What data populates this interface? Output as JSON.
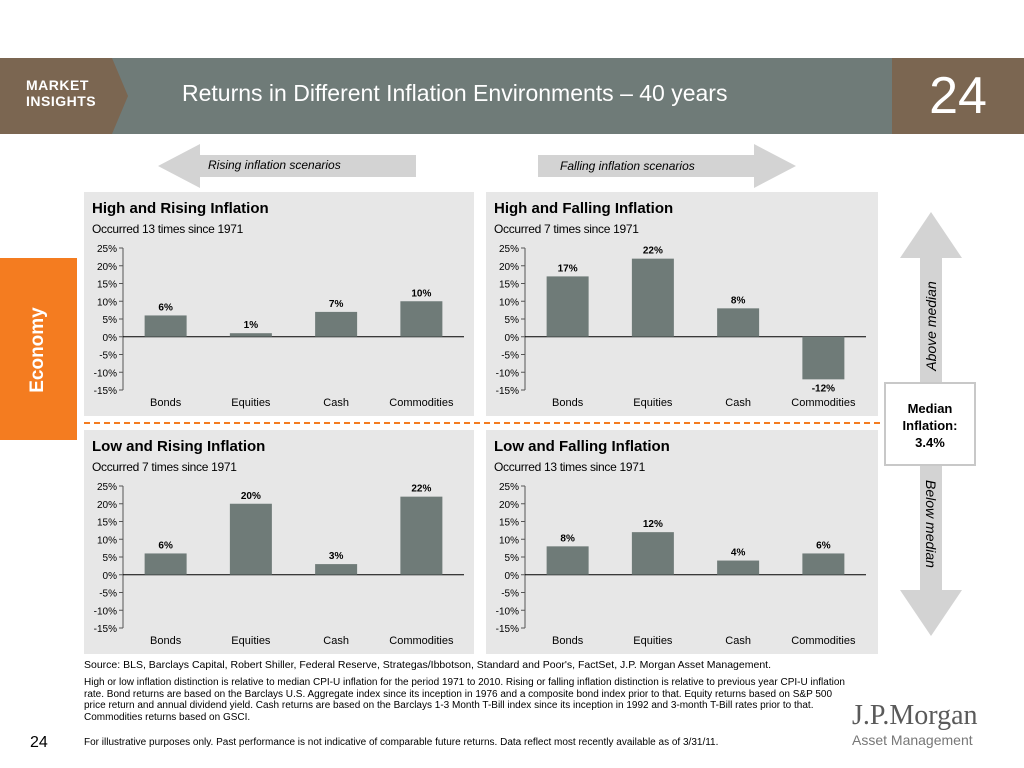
{
  "header": {
    "brand": "MARKET\nINSIGHTS",
    "title": "Returns in Different Inflation Environments – 40 years",
    "page_badge": "24",
    "band_color": "#6f7b78",
    "badge_color": "#7b6651"
  },
  "side_tab": {
    "label": "Economy",
    "color": "#f47c20"
  },
  "arrows": {
    "rising": "Rising inflation scenarios",
    "falling": "Falling inflation scenarios"
  },
  "median": {
    "label": "Median Inflation:",
    "value": "3.4%",
    "above": "Above median",
    "below": "Below median"
  },
  "chart_data": [
    {
      "type": "bar",
      "title": "High and Rising Inflation",
      "subtitle": "Occurred 13 times since 1971",
      "categories": [
        "Bonds",
        "Equities",
        "Cash",
        "Commodities"
      ],
      "values": [
        6,
        1,
        7,
        10
      ],
      "data_labels": [
        "6%",
        "1%",
        "7%",
        "10%"
      ],
      "ylim": [
        -15,
        25
      ],
      "yticks": [
        "25%",
        "20%",
        "15%",
        "10%",
        "5%",
        "0%",
        "-5%",
        "-10%",
        "-15%"
      ],
      "bar_color": "#6f7b78"
    },
    {
      "type": "bar",
      "title": "High and Falling Inflation",
      "subtitle": "Occurred 7 times since 1971",
      "categories": [
        "Bonds",
        "Equities",
        "Cash",
        "Commodities"
      ],
      "values": [
        17,
        22,
        8,
        -12
      ],
      "data_labels": [
        "17%",
        "22%",
        "8%",
        "-12%"
      ],
      "ylim": [
        -15,
        25
      ],
      "yticks": [
        "25%",
        "20%",
        "15%",
        "10%",
        "5%",
        "0%",
        "-5%",
        "-10%",
        "-15%"
      ],
      "bar_color": "#6f7b78"
    },
    {
      "type": "bar",
      "title": "Low and Rising Inflation",
      "subtitle": "Occurred 7 times since 1971",
      "categories": [
        "Bonds",
        "Equities",
        "Cash",
        "Commodities"
      ],
      "values": [
        6,
        20,
        3,
        22
      ],
      "data_labels": [
        "6%",
        "20%",
        "3%",
        "22%"
      ],
      "ylim": [
        -15,
        25
      ],
      "yticks": [
        "25%",
        "20%",
        "15%",
        "10%",
        "5%",
        "0%",
        "-5%",
        "-10%",
        "-15%"
      ],
      "bar_color": "#6f7b78"
    },
    {
      "type": "bar",
      "title": "Low and Falling Inflation",
      "subtitle": "Occurred 13 times since 1971",
      "categories": [
        "Bonds",
        "Equities",
        "Cash",
        "Commodities"
      ],
      "values": [
        8,
        12,
        4,
        6
      ],
      "data_labels": [
        "8%",
        "12%",
        "4%",
        "6%"
      ],
      "ylim": [
        -15,
        25
      ],
      "yticks": [
        "25%",
        "20%",
        "15%",
        "10%",
        "5%",
        "0%",
        "-5%",
        "-10%",
        "-15%"
      ],
      "bar_color": "#6f7b78"
    }
  ],
  "footer": {
    "source": "Source: BLS, Barclays Capital, Robert Shiller, Federal Reserve, Strategas/Ibbotson, Standard and Poor's, FactSet, J.P. Morgan Asset Management.",
    "notes": "High or low inflation distinction is relative to median CPI-U inflation for the period 1971 to 2010. Rising or falling inflation distinction is relative to previous year CPI-U inflation rate. Bond returns are based on the Barclays U.S. Aggregate index since its inception in 1976 and a composite bond index prior to that. Equity returns based on S&P 500 price return and annual dividend yield. Cash returns are based on the Barclays 1-3 Month T-Bill index since its inception in 1992 and 3-month T-Bill rates prior to that. Commodities returns based on GSCI.",
    "disclaimer": "For illustrative purposes only. Past performance is not indicative of comparable future returns. Data reflect most recently available as of 3/31/11.",
    "page_number": "24",
    "logo_line1": "J.P.Morgan",
    "logo_line2": "Asset Management"
  }
}
